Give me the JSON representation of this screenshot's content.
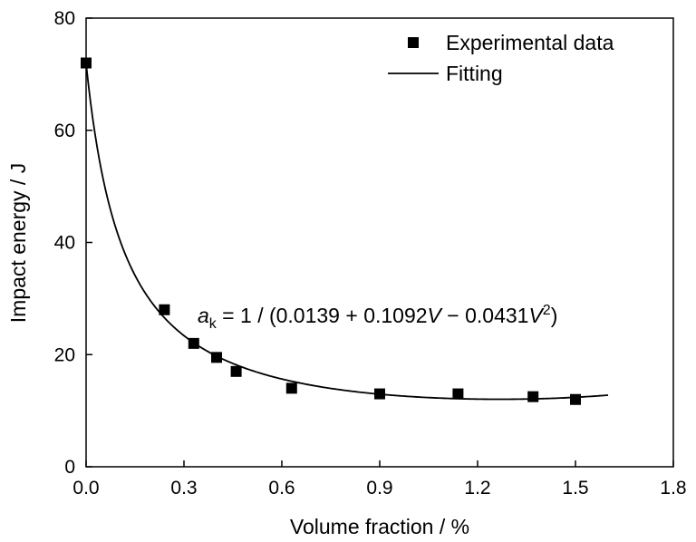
{
  "chart_data": {
    "type": "scatter",
    "title": "",
    "xlabel": "Volume fraction / %",
    "ylabel": "Impact energy / J",
    "xlim": [
      0.0,
      1.8
    ],
    "ylim": [
      0,
      80
    ],
    "x_ticks": [
      "0.0",
      "0.3",
      "0.6",
      "0.9",
      "1.2",
      "1.5",
      "1.8"
    ],
    "y_ticks": [
      "0",
      "20",
      "40",
      "60",
      "80"
    ],
    "grid": false,
    "legend_position": "top-right",
    "series": [
      {
        "name": "Experimental data",
        "marker": "square",
        "color": "#000000",
        "x": [
          0.0,
          0.24,
          0.33,
          0.4,
          0.46,
          0.63,
          0.9,
          1.14,
          1.37,
          1.5
        ],
        "y": [
          72,
          28,
          22,
          19.5,
          17,
          14,
          13,
          13,
          12.5,
          12
        ]
      },
      {
        "name": "Fitting",
        "kind": "line",
        "color": "#000000",
        "x_range": [
          0.0,
          1.6
        ],
        "coefficients": [
          0.0139,
          0.1092,
          -0.0431
        ]
      }
    ],
    "annotation": {
      "symbol": "a",
      "subscript": "k",
      "body_1": " = 1 / (0.0139 + 0.1092",
      "var_1": "V",
      "body_2": " − 0.0431",
      "var_2": "V",
      "superscript": "2",
      "body_3": ")"
    }
  }
}
